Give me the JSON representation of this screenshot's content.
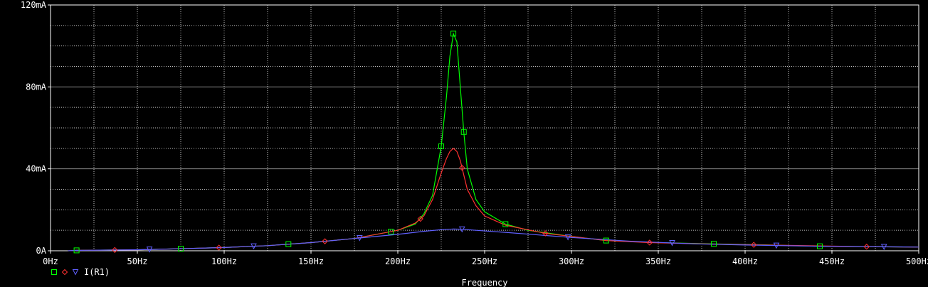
{
  "chart_data": {
    "type": "line",
    "xlabel": "Frequency",
    "ylabel": "",
    "xlim": [
      0,
      500
    ],
    "ylim": [
      0,
      120
    ],
    "x_units": "Hz",
    "y_units": "mA",
    "x_ticks": [
      "0Hz",
      "50Hz",
      "100Hz",
      "150Hz",
      "200Hz",
      "250Hz",
      "300Hz",
      "350Hz",
      "400Hz",
      "450Hz",
      "500Hz"
    ],
    "y_ticks": [
      "0A",
      "40mA",
      "80mA",
      "120mA"
    ],
    "grid": true,
    "legend_placement": "bottom-left",
    "legend_entries": [
      "",
      "",
      "I(R1)"
    ],
    "series": [
      {
        "name": "",
        "color": "#00ff00",
        "marker": "square",
        "x": [
          10,
          15,
          50,
          75,
          100,
          125,
          150,
          175,
          200,
          210,
          215,
          220,
          225,
          228,
          230,
          232,
          234,
          236,
          238,
          240,
          245,
          250,
          262,
          275,
          300,
          320,
          350,
          380,
          410,
          443,
          470,
          500
        ],
        "y": [
          0,
          0.2,
          0.5,
          1,
          1.6,
          2.5,
          4,
          6,
          10,
          13,
          18,
          27,
          51,
          75,
          95,
          106,
          102,
          80,
          58,
          40,
          25,
          19,
          13,
          10,
          7,
          5,
          4,
          3.4,
          2.9,
          2.2,
          2,
          1.8
        ]
      },
      {
        "name": "",
        "color": "#ff3030",
        "marker": "diamond",
        "x": [
          10,
          15,
          50,
          75,
          100,
          125,
          150,
          175,
          200,
          210,
          215,
          220,
          225,
          228,
          230,
          232,
          234,
          236,
          238,
          240,
          245,
          250,
          262,
          285,
          300,
          320,
          345,
          380,
          405,
          470,
          500
        ],
        "y": [
          0,
          0.2,
          0.5,
          1,
          1.6,
          2.5,
          4,
          6,
          10,
          13.5,
          17,
          25,
          38,
          45,
          48.5,
          50,
          48.5,
          44,
          37,
          30,
          22,
          17,
          12.5,
          8.5,
          7,
          5,
          4,
          3.3,
          2.9,
          2,
          1.8
        ]
      },
      {
        "name": "I(R1)",
        "color": "#6060ff",
        "marker": "triangle",
        "x": [
          10,
          15,
          50,
          75,
          100,
          125,
          150,
          175,
          200,
          215,
          225,
          232,
          237,
          245,
          262,
          300,
          335,
          370,
          400,
          450,
          500
        ],
        "y": [
          0,
          0.2,
          0.5,
          1,
          1.6,
          2.5,
          4,
          6,
          8,
          9.5,
          10.3,
          10.6,
          10.5,
          10,
          9,
          6.5,
          4.6,
          3.4,
          2.8,
          2.1,
          1.8
        ]
      }
    ]
  }
}
